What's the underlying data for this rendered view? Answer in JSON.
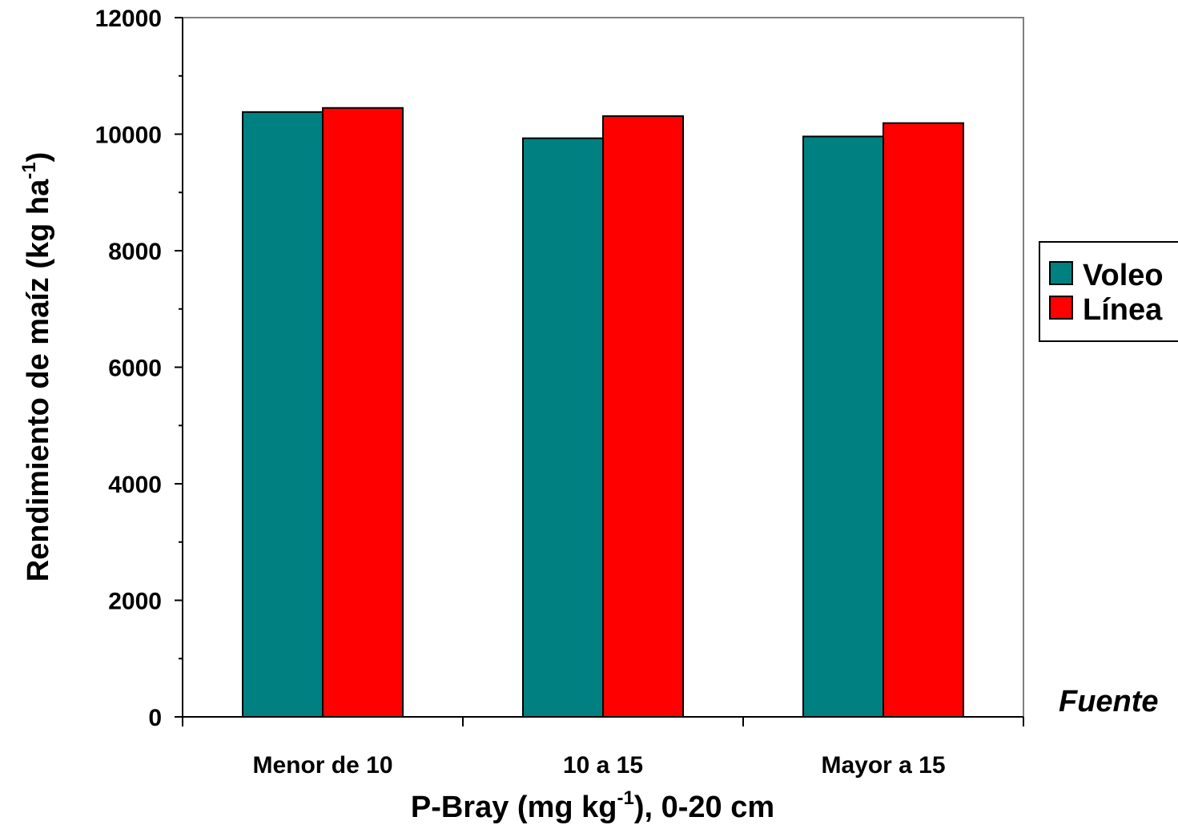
{
  "chart_data": {
    "type": "bar",
    "categories": [
      "Menor de 10",
      "10 a 15",
      "Mayor a 15"
    ],
    "series": [
      {
        "name": "Voleo",
        "color": "#008080",
        "values": [
          10380,
          9930,
          9960
        ]
      },
      {
        "name": "Línea",
        "color": "#ff0000",
        "values": [
          10450,
          10310,
          10190
        ]
      }
    ],
    "ylim": [
      0,
      12000
    ],
    "yticks": [
      "0",
      "2000",
      "4000",
      "6000",
      "8000",
      "10000",
      "12000"
    ],
    "xlabel": {
      "main": "P-Bray (mg kg",
      "sup": "-1",
      "tail": "), 0-20 cm"
    },
    "ylabel": {
      "main": "Rendimiento de maíz (kg ha",
      "sup": "-1",
      "tail": ")"
    },
    "legend": {
      "position": "right",
      "items": [
        "Voleo",
        "Línea"
      ]
    },
    "source": "Fuente",
    "grid": false
  }
}
